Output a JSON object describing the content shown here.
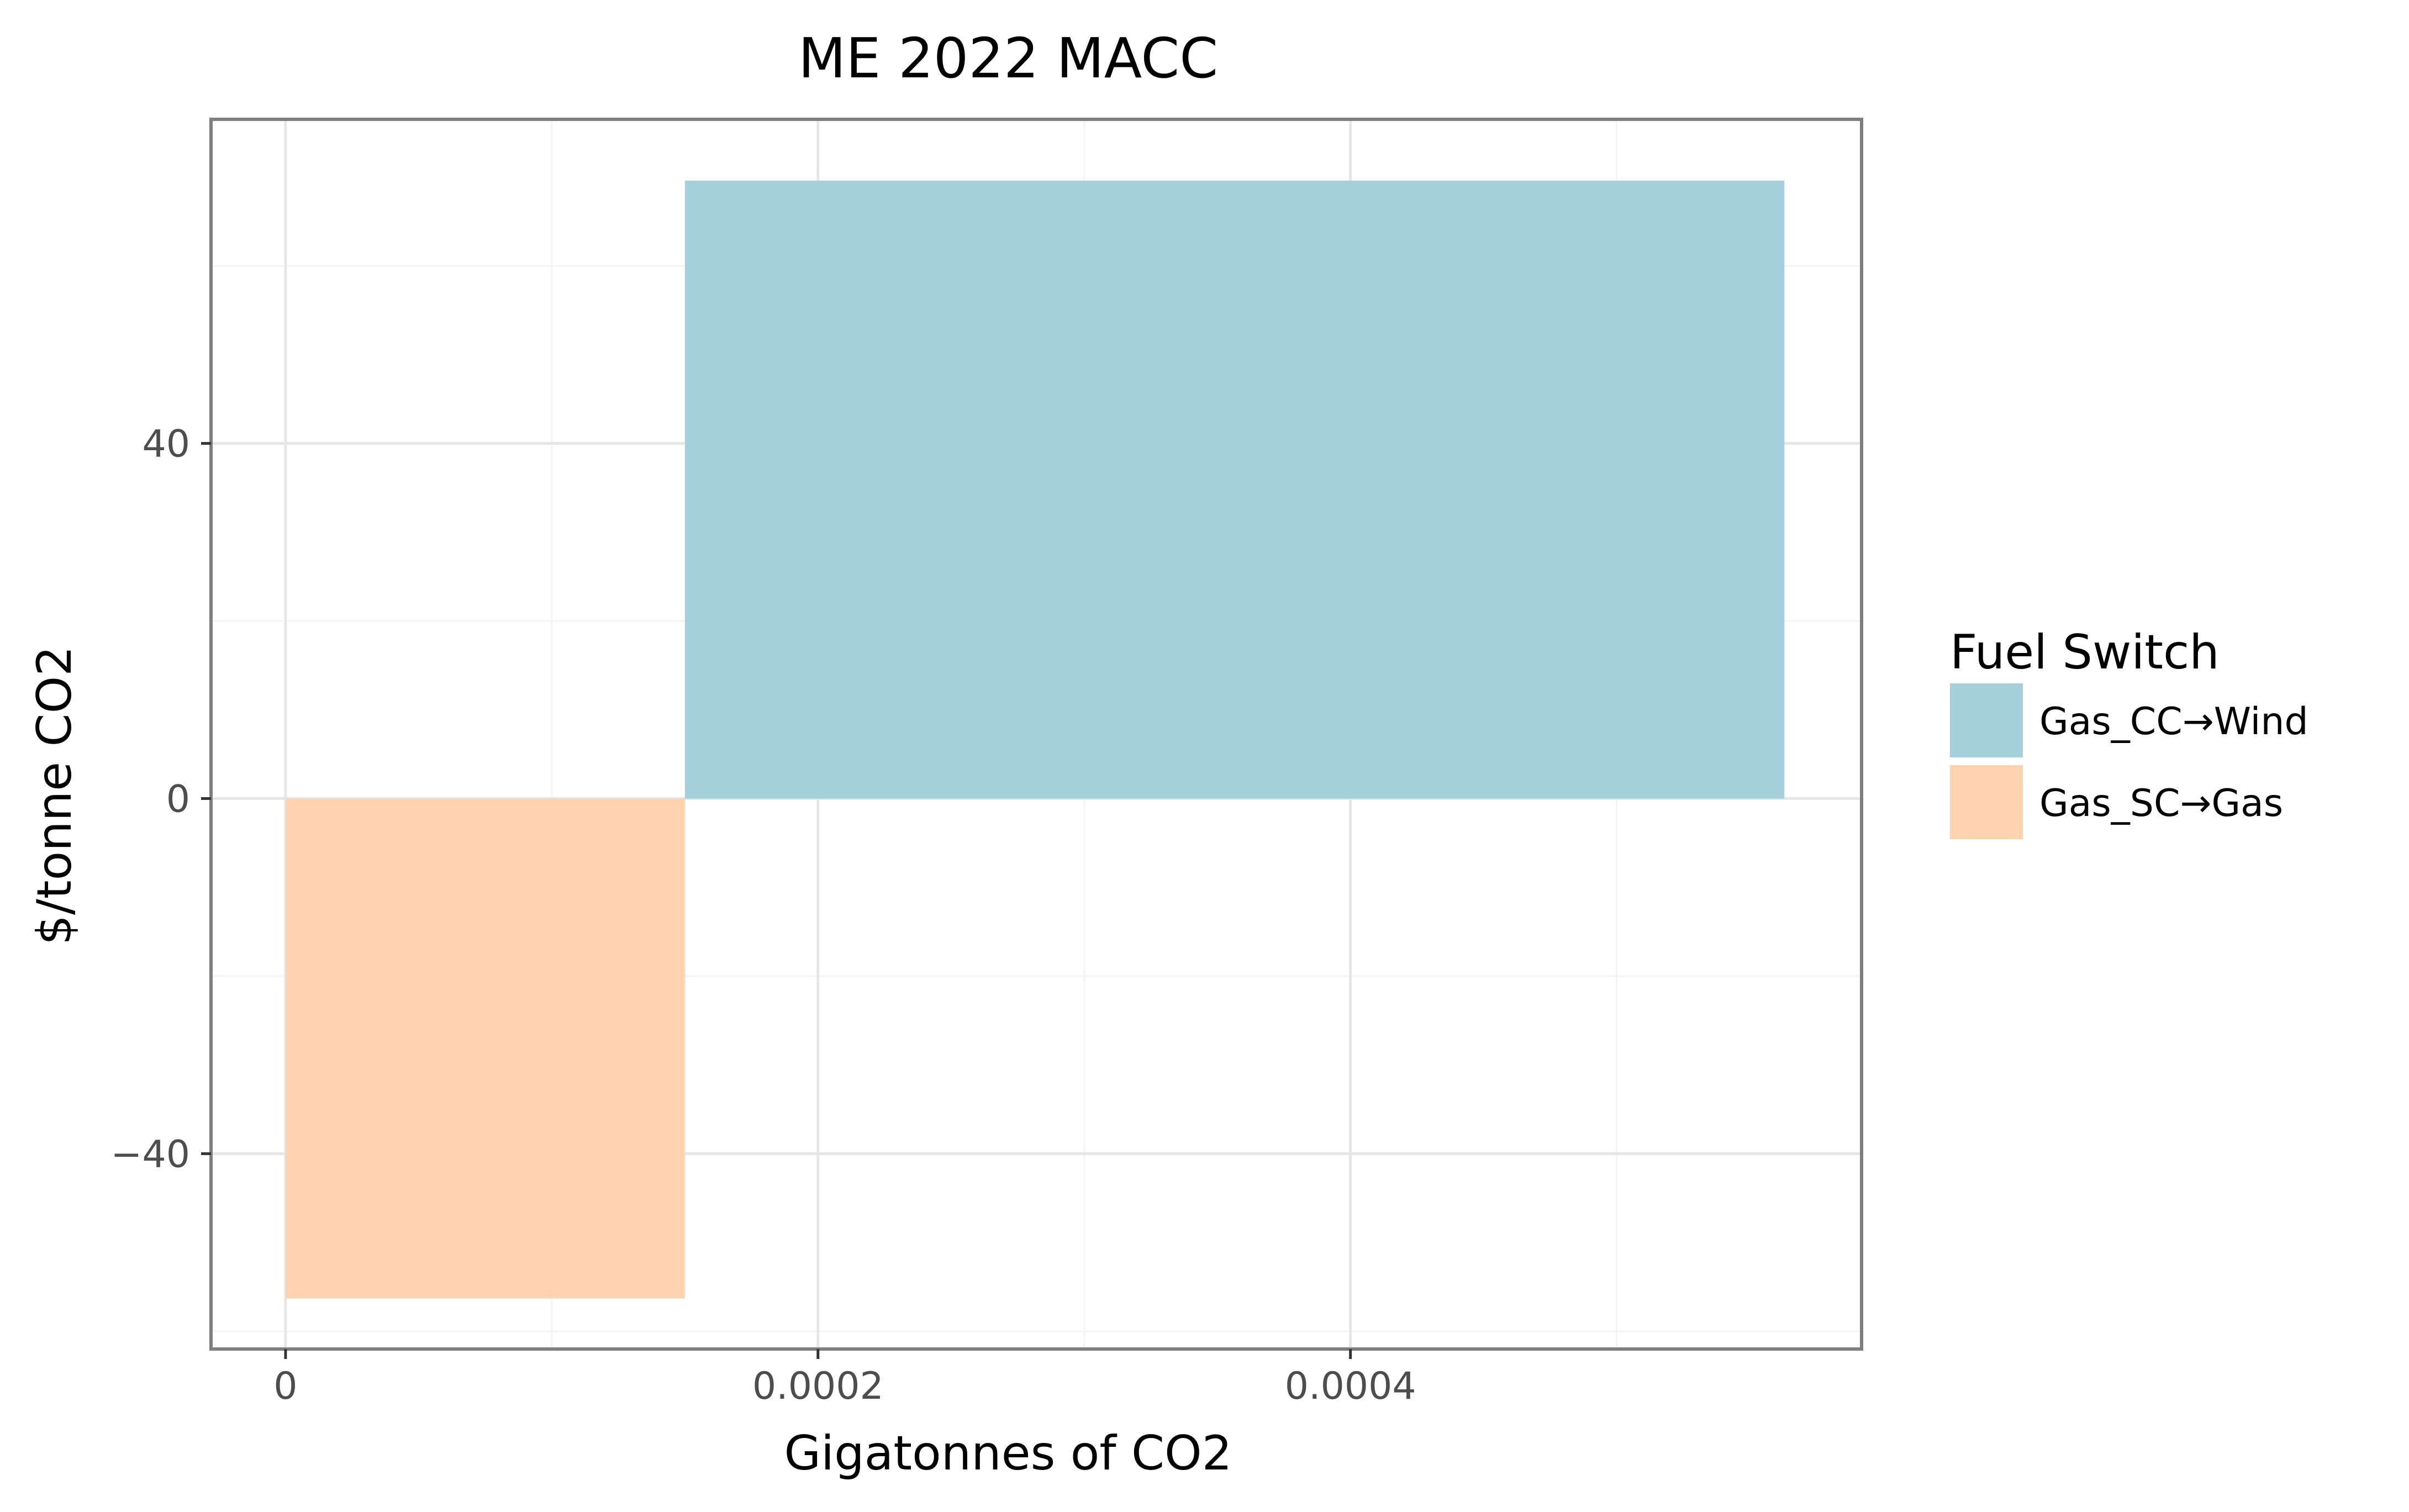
{
  "chart_data": {
    "type": "bar",
    "title": "ME 2022 MACC",
    "xlabel": "Gigatonnes of CO2",
    "ylabel": "$/tonne CO2",
    "xlim": [
      -2.8e-05,
      0.000592
    ],
    "ylim": [
      -62,
      76.5
    ],
    "x_ticks": [
      {
        "value": 0,
        "label": "0"
      },
      {
        "value": 0.0002,
        "label": "0.0002"
      },
      {
        "value": 0.0004,
        "label": "0.0004"
      }
    ],
    "x_minor_ticks": [
      0.0001,
      0.0003,
      0.0005
    ],
    "y_ticks": [
      {
        "value": -40,
        "label": "−40"
      },
      {
        "value": 0,
        "label": "0"
      },
      {
        "value": 40,
        "label": "40"
      }
    ],
    "y_minor_ticks": [
      -60,
      -20,
      20,
      60
    ],
    "grid": true,
    "legend": {
      "title": "Fuel Switch",
      "position": "right",
      "entries": [
        {
          "label": "Gas_CC→Wind",
          "color": "#a6cfdc"
        },
        {
          "label": "Gas_SC→Gas",
          "color": "#fdd3b0"
        }
      ]
    },
    "bars": [
      {
        "name": "Gas_SC→Gas",
        "x_start": 0,
        "x_end": 0.00015,
        "value": -56.3,
        "color": "#fdd3b0"
      },
      {
        "name": "Gas_CC→Wind",
        "x_start": 0.00015,
        "x_end": 0.000563,
        "value": 69.6,
        "color": "#a6cfdc"
      }
    ]
  }
}
